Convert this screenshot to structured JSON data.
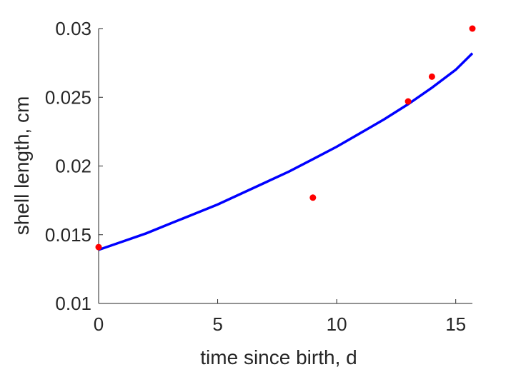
{
  "chart_data": {
    "type": "scatter",
    "title": "",
    "xlabel": "time since birth, d",
    "ylabel": "shell length, cm",
    "xlim": [
      0,
      15.7
    ],
    "ylim": [
      0.01,
      0.03
    ],
    "xticks": [
      0,
      5,
      10,
      15
    ],
    "xtick_labels": [
      "0",
      "5",
      "10",
      "15"
    ],
    "yticks": [
      0.01,
      0.015,
      0.02,
      0.025,
      0.03
    ],
    "ytick_labels": [
      "0.01",
      "0.015",
      "0.02",
      "0.025",
      "0.03"
    ],
    "grid": false,
    "series": [
      {
        "kind": "points",
        "color": "#ff0000",
        "x": [
          0,
          9,
          13,
          14,
          15.7
        ],
        "y": [
          0.0141,
          0.0177,
          0.0247,
          0.0265,
          0.03
        ]
      },
      {
        "kind": "line",
        "color": "#0000ff",
        "x": [
          0,
          1,
          2,
          3,
          4,
          5,
          6,
          7,
          8,
          9,
          10,
          11,
          12,
          13,
          14,
          15,
          15.7
        ],
        "y": [
          0.0139,
          0.0145,
          0.0151,
          0.0158,
          0.0165,
          0.0172,
          0.018,
          0.0188,
          0.0196,
          0.0205,
          0.0214,
          0.0224,
          0.0234,
          0.0245,
          0.0257,
          0.027,
          0.0282
        ]
      }
    ]
  }
}
